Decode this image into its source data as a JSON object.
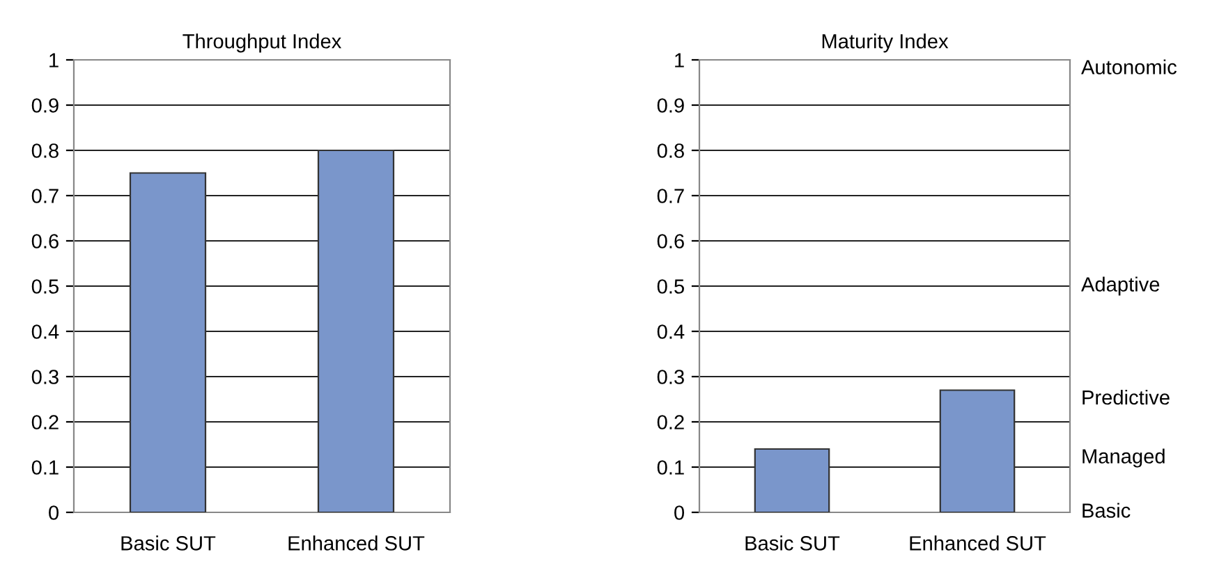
{
  "chart_data": [
    {
      "type": "bar",
      "title": "Throughput Index",
      "categories": [
        "Basic SUT",
        "Enhanced SUT"
      ],
      "values": [
        0.75,
        0.8
      ],
      "color": "#7a96cb",
      "ylim": [
        0,
        1
      ],
      "yticks": [
        0,
        0.1,
        0.2,
        0.3,
        0.4,
        0.5,
        0.6,
        0.7,
        0.8,
        0.9,
        1
      ],
      "grid": "y"
    },
    {
      "type": "bar",
      "title": "Maturity Index",
      "categories": [
        "Basic SUT",
        "Enhanced SUT"
      ],
      "values": [
        0.14,
        0.27
      ],
      "color": "#7a96cb",
      "ylim": [
        0,
        1
      ],
      "yticks": [
        0,
        0.1,
        0.2,
        0.3,
        0.4,
        0.5,
        0.6,
        0.7,
        0.8,
        0.9,
        1
      ],
      "grid": "y",
      "annotations": [
        "Basic",
        "Managed",
        "Predictive",
        "Adaptive",
        "Autonomic"
      ]
    }
  ]
}
